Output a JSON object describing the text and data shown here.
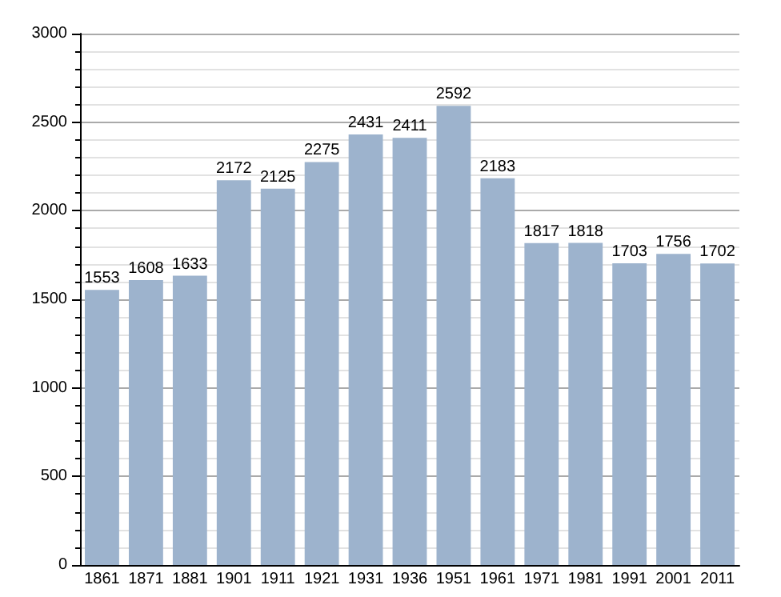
{
  "chart_data": {
    "type": "bar",
    "categories": [
      "1861",
      "1871",
      "1881",
      "1901",
      "1911",
      "1921",
      "1931",
      "1936",
      "1951",
      "1961",
      "1971",
      "1981",
      "1991",
      "2001",
      "2011"
    ],
    "values": [
      1553,
      1608,
      1633,
      2172,
      2125,
      2275,
      2431,
      2411,
      2592,
      2183,
      1817,
      1818,
      1703,
      1756,
      1702
    ],
    "color": "#9db3cd",
    "ylim": [
      0,
      3000
    ],
    "yticks": [
      0,
      500,
      1000,
      1500,
      2000,
      2500,
      3000
    ],
    "grid": "y",
    "data_labels": true
  }
}
